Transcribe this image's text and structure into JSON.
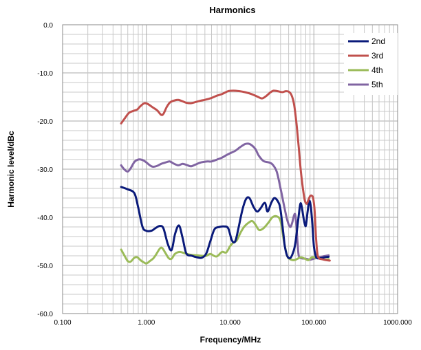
{
  "chart_data": {
    "type": "line",
    "title": "Harmonics",
    "xlabel": "Frequency/MHz",
    "ylabel": "Harmonic level/dBc",
    "x_scale": "log",
    "xlim": [
      0.1,
      1000
    ],
    "ylim": [
      -60,
      0
    ],
    "x_ticks": [
      0.1,
      1,
      10,
      100,
      1000
    ],
    "x_tick_labels": [
      "0.100",
      "1.000",
      "10.000",
      "100.000",
      "1000.000"
    ],
    "y_ticks": [
      0,
      -10,
      -20,
      -30,
      -40,
      -50,
      -60
    ],
    "y_tick_labels": [
      "0.0",
      "-10.0",
      "-20.0",
      "-30.0",
      "-40.0",
      "-50.0",
      "-60.0"
    ],
    "grid": true,
    "legend_position": "top-right",
    "series": [
      {
        "name": "2nd",
        "color": "#0a1a7a",
        "points": [
          [
            0.5,
            -33.7
          ],
          [
            0.6,
            -34.2
          ],
          [
            0.72,
            -35
          ],
          [
            0.8,
            -38
          ],
          [
            0.9,
            -42
          ],
          [
            1.0,
            -42.8
          ],
          [
            1.15,
            -42.8
          ],
          [
            1.3,
            -42.2
          ],
          [
            1.45,
            -41.8
          ],
          [
            1.6,
            -42.3
          ],
          [
            1.8,
            -45.5
          ],
          [
            2.0,
            -46.8
          ],
          [
            2.2,
            -43.5
          ],
          [
            2.45,
            -41.7
          ],
          [
            2.7,
            -44.2
          ],
          [
            3.0,
            -47.5
          ],
          [
            3.5,
            -48
          ],
          [
            4.0,
            -48.3
          ],
          [
            4.6,
            -48.4
          ],
          [
            5.2,
            -47.5
          ],
          [
            5.8,
            -45
          ],
          [
            6.5,
            -42.5
          ],
          [
            7.5,
            -42
          ],
          [
            8.5,
            -41.9
          ],
          [
            9.5,
            -42.3
          ],
          [
            10.5,
            -44.8
          ],
          [
            11.5,
            -45
          ],
          [
            12.5,
            -42.5
          ],
          [
            14,
            -38.5
          ],
          [
            15.5,
            -36.2
          ],
          [
            17,
            -36
          ],
          [
            19,
            -37.8
          ],
          [
            21,
            -38.8
          ],
          [
            23,
            -38.2
          ],
          [
            26,
            -37
          ],
          [
            28,
            -38.8
          ],
          [
            31,
            -37
          ],
          [
            34,
            -36
          ],
          [
            38,
            -37
          ],
          [
            40,
            -38.5
          ],
          [
            43,
            -43
          ],
          [
            45,
            -46
          ],
          [
            48,
            -48
          ],
          [
            52,
            -48.5
          ],
          [
            56,
            -47.5
          ],
          [
            60,
            -45.5
          ],
          [
            65,
            -40.5
          ],
          [
            69,
            -37.2
          ],
          [
            72,
            -38
          ],
          [
            76,
            -40.5
          ],
          [
            80,
            -41.8
          ],
          [
            84,
            -39
          ],
          [
            88,
            -36.6
          ],
          [
            92,
            -37.8
          ],
          [
            96,
            -41.5
          ],
          [
            100,
            -46
          ],
          [
            105,
            -48
          ],
          [
            110,
            -48.5
          ],
          [
            120,
            -48.5
          ],
          [
            135,
            -48.3
          ],
          [
            150,
            -48.2
          ]
        ]
      },
      {
        "name": "3rd",
        "color": "#c0504d",
        "points": [
          [
            0.5,
            -20.5
          ],
          [
            0.55,
            -19.5
          ],
          [
            0.62,
            -18.3
          ],
          [
            0.7,
            -17.9
          ],
          [
            0.78,
            -17.6
          ],
          [
            0.85,
            -16.9
          ],
          [
            0.95,
            -16.3
          ],
          [
            1.05,
            -16.5
          ],
          [
            1.2,
            -17.2
          ],
          [
            1.35,
            -17.8
          ],
          [
            1.5,
            -18.7
          ],
          [
            1.6,
            -18.5
          ],
          [
            1.75,
            -17.1
          ],
          [
            1.9,
            -16.2
          ],
          [
            2.1,
            -15.8
          ],
          [
            2.4,
            -15.6
          ],
          [
            2.7,
            -15.9
          ],
          [
            3.0,
            -16.2
          ],
          [
            3.4,
            -16.3
          ],
          [
            3.8,
            -16.1
          ],
          [
            4.4,
            -15.8
          ],
          [
            5.0,
            -15.6
          ],
          [
            5.8,
            -15.3
          ],
          [
            6.8,
            -14.8
          ],
          [
            8.0,
            -14.4
          ],
          [
            9.5,
            -13.8
          ],
          [
            11,
            -13.7
          ],
          [
            13,
            -13.8
          ],
          [
            15,
            -14
          ],
          [
            18,
            -14.4
          ],
          [
            21,
            -14.9
          ],
          [
            24,
            -15.3
          ],
          [
            27,
            -14.8
          ],
          [
            30,
            -14.1
          ],
          [
            33,
            -13.7
          ],
          [
            37,
            -13.8
          ],
          [
            42,
            -14
          ],
          [
            46,
            -13.8
          ],
          [
            50,
            -13.9
          ],
          [
            54,
            -14.6
          ],
          [
            58,
            -16.5
          ],
          [
            62,
            -20.5
          ],
          [
            66,
            -25.5
          ],
          [
            70,
            -30.5
          ],
          [
            74,
            -34
          ],
          [
            78,
            -36.5
          ],
          [
            82,
            -37.2
          ],
          [
            86,
            -36.4
          ],
          [
            90,
            -35.6
          ],
          [
            94,
            -35.5
          ],
          [
            98,
            -36
          ],
          [
            102,
            -38.5
          ],
          [
            106,
            -44
          ],
          [
            110,
            -47.5
          ],
          [
            115,
            -48.5
          ],
          [
            125,
            -48.7
          ],
          [
            140,
            -48.9
          ],
          [
            155,
            -49
          ]
        ]
      },
      {
        "name": "4th",
        "color": "#9bbb59",
        "points": [
          [
            0.5,
            -46.7
          ],
          [
            0.55,
            -48
          ],
          [
            0.6,
            -49.1
          ],
          [
            0.65,
            -49.2
          ],
          [
            0.72,
            -48.4
          ],
          [
            0.78,
            -48.3
          ],
          [
            0.85,
            -48.9
          ],
          [
            0.92,
            -49.3
          ],
          [
            1.0,
            -49.6
          ],
          [
            1.1,
            -49.1
          ],
          [
            1.2,
            -48.6
          ],
          [
            1.3,
            -47.8
          ],
          [
            1.45,
            -46.5
          ],
          [
            1.55,
            -46.4
          ],
          [
            1.7,
            -47.5
          ],
          [
            1.85,
            -48.5
          ],
          [
            2.0,
            -48.6
          ],
          [
            2.2,
            -47.6
          ],
          [
            2.5,
            -47.2
          ],
          [
            2.9,
            -47.5
          ],
          [
            3.4,
            -47.8
          ],
          [
            4.0,
            -47.9
          ],
          [
            4.6,
            -48
          ],
          [
            5.2,
            -48
          ],
          [
            5.8,
            -47.6
          ],
          [
            6.4,
            -48
          ],
          [
            7.0,
            -48.1
          ],
          [
            8.0,
            -47.2
          ],
          [
            9.0,
            -47.3
          ],
          [
            10,
            -46
          ],
          [
            11,
            -45.2
          ],
          [
            12,
            -44.8
          ],
          [
            13.5,
            -43
          ],
          [
            15,
            -41.8
          ],
          [
            17,
            -41
          ],
          [
            18.5,
            -40.8
          ],
          [
            20,
            -41.5
          ],
          [
            22,
            -42.6
          ],
          [
            24,
            -42.5
          ],
          [
            26,
            -42
          ],
          [
            29,
            -41
          ],
          [
            32,
            -40
          ],
          [
            36,
            -39.8
          ],
          [
            40,
            -40.8
          ],
          [
            44,
            -45
          ],
          [
            48,
            -48
          ],
          [
            52,
            -48.7
          ],
          [
            58,
            -48.9
          ],
          [
            64,
            -48.6
          ],
          [
            70,
            -48.3
          ],
          [
            78,
            -48.6
          ],
          [
            86,
            -48.9
          ],
          [
            95,
            -48.3
          ],
          [
            105,
            -48.4
          ],
          [
            120,
            -48.6
          ],
          [
            135,
            -48.8
          ],
          [
            150,
            -48.7
          ]
        ]
      },
      {
        "name": "5th",
        "color": "#8064a2",
        "points": [
          [
            0.5,
            -29.2
          ],
          [
            0.55,
            -30.1
          ],
          [
            0.6,
            -30.5
          ],
          [
            0.65,
            -29.8
          ],
          [
            0.72,
            -28.5
          ],
          [
            0.8,
            -28
          ],
          [
            0.9,
            -28.1
          ],
          [
            1.0,
            -28.6
          ],
          [
            1.1,
            -29.2
          ],
          [
            1.2,
            -29.5
          ],
          [
            1.35,
            -29.3
          ],
          [
            1.5,
            -28.9
          ],
          [
            1.7,
            -28.6
          ],
          [
            1.9,
            -28.4
          ],
          [
            2.1,
            -28.8
          ],
          [
            2.4,
            -29.2
          ],
          [
            2.7,
            -28.9
          ],
          [
            3.0,
            -29.1
          ],
          [
            3.4,
            -29.4
          ],
          [
            3.8,
            -29.1
          ],
          [
            4.3,
            -28.7
          ],
          [
            4.8,
            -28.5
          ],
          [
            5.4,
            -28.4
          ],
          [
            6.0,
            -28.4
          ],
          [
            7.0,
            -28
          ],
          [
            8.0,
            -27.6
          ],
          [
            9.0,
            -27.1
          ],
          [
            10,
            -26.7
          ],
          [
            11.5,
            -26.2
          ],
          [
            13,
            -25.5
          ],
          [
            15,
            -24.8
          ],
          [
            16.5,
            -24.7
          ],
          [
            18,
            -25
          ],
          [
            20,
            -25.8
          ],
          [
            22,
            -27.2
          ],
          [
            25,
            -28.3
          ],
          [
            29,
            -28.6
          ],
          [
            32,
            -29
          ],
          [
            36,
            -30.5
          ],
          [
            40,
            -34
          ],
          [
            44,
            -37.5
          ],
          [
            48,
            -40.5
          ],
          [
            52,
            -42
          ],
          [
            55,
            -41.2
          ],
          [
            58,
            -39.6
          ],
          [
            60,
            -39.5
          ],
          [
            62,
            -42
          ],
          [
            64,
            -45.5
          ],
          [
            66,
            -48
          ],
          [
            70,
            -48.5
          ],
          [
            80,
            -48.6
          ],
          [
            90,
            -48.8
          ],
          [
            100,
            -48.6
          ],
          [
            115,
            -48.3
          ],
          [
            130,
            -48.1
          ],
          [
            150,
            -47.9
          ]
        ]
      }
    ]
  }
}
